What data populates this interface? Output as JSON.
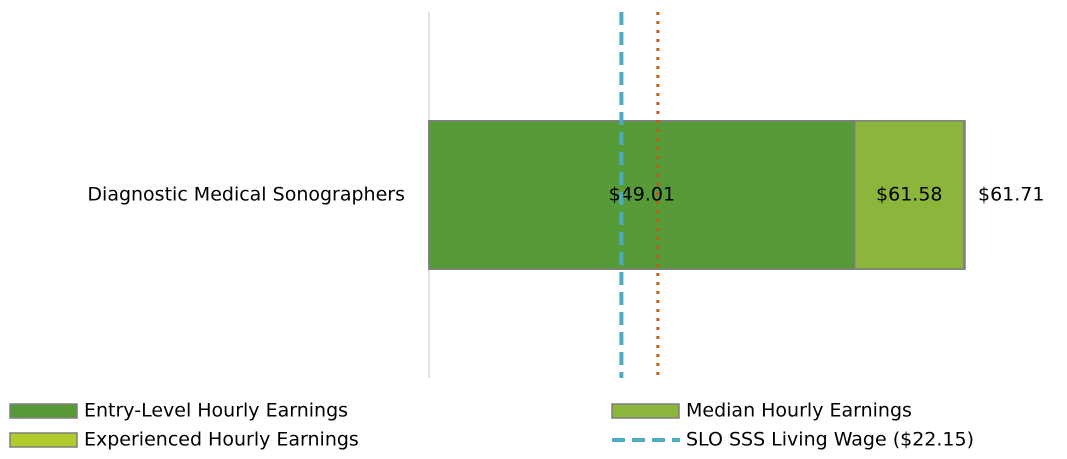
{
  "chart_data": {
    "type": "bar",
    "orientation": "horizontal",
    "categories": [
      "Diagnostic Medical Sonographers"
    ],
    "series": [
      {
        "name": "Entry-Level Hourly Earnings",
        "color": "#569b38",
        "values": [
          49.01
        ],
        "value_labels": [
          "$49.01"
        ]
      },
      {
        "name": "Median Hourly Earnings",
        "color": "#8cb63b",
        "values": [
          61.58
        ],
        "value_labels": [
          "$61.58"
        ]
      },
      {
        "name": "Experienced Hourly Earnings",
        "color": "#b3cb2c",
        "values": [
          61.71
        ],
        "value_labels": [
          "$61.71"
        ]
      }
    ],
    "reference_lines": [
      {
        "name": "SLO SSS Living Wage ($22.15)",
        "value": 22.15,
        "color": "#4bacc6",
        "style": "dashed"
      },
      {
        "value": 26.35,
        "color": "#c55a11",
        "style": "dotted"
      }
    ],
    "xlim": [
      0,
      70
    ]
  }
}
